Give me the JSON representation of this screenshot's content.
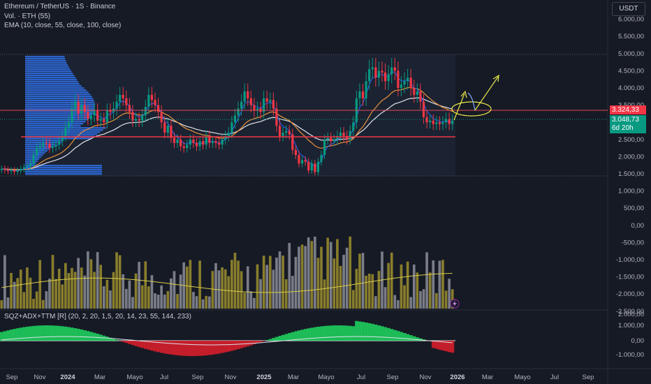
{
  "legend": {
    "symbol_line": "Ethereum / TetherUS · 1S · Binance",
    "volume_line": "Vol. · ETH (55)",
    "ema_line": "EMA (10, close, 55, close, 100, close)",
    "indicator_line": "SQZ+ADX+TTM [R] (20, 2, 20, 1,5, 20, 14, 23, 55, 144, 233)"
  },
  "currency": "USDT",
  "price_labels": {
    "resistance": "3.324,33",
    "current": "3.048,73",
    "countdown": "6d 20h"
  },
  "colors": {
    "bull": "#089981",
    "bear": "#f23645",
    "volume_bar": "#9c8f2e",
    "volume_bar_down": "#8c8f99",
    "ema10": "#2962ff",
    "ema55": "#e8913b",
    "ema100": "#e0e3eb",
    "annotation": "#e8e84a",
    "vp": "#2f6ee8"
  },
  "y_axis": {
    "price": [
      "6.000,00",
      "5.500,00",
      "5.000,00",
      "4.500,00",
      "4.000,00",
      "3.500,00",
      "3.000,00",
      "2.500,00",
      "2.000,00",
      "1.500,00",
      "1.000,00",
      "500,00",
      "0,00",
      "-500,00",
      "-1.000,00",
      "-1.500,00",
      "-2.000,00",
      "-2.500,00"
    ],
    "oscillator": [
      "2.000,00",
      "1.000,00",
      "0,00",
      "-1.000,00"
    ]
  },
  "x_axis": [
    {
      "label": "Sep",
      "bold": false
    },
    {
      "label": "Nov",
      "bold": false
    },
    {
      "label": "2024",
      "bold": true
    },
    {
      "label": "Mar",
      "bold": false
    },
    {
      "label": "Mayo",
      "bold": false
    },
    {
      "label": "Jul",
      "bold": false
    },
    {
      "label": "Sep",
      "bold": false
    },
    {
      "label": "Nov",
      "bold": false
    },
    {
      "label": "2025",
      "bold": true
    },
    {
      "label": "Mar",
      "bold": false
    },
    {
      "label": "Mayo",
      "bold": false
    },
    {
      "label": "Jul",
      "bold": false
    },
    {
      "label": "Sep",
      "bold": false
    },
    {
      "label": "Nov",
      "bold": false
    },
    {
      "label": "2026",
      "bold": true
    },
    {
      "label": "Mar",
      "bold": false
    },
    {
      "label": "Mayo",
      "bold": false
    },
    {
      "label": "Jul",
      "bold": false
    },
    {
      "label": "Sep",
      "bold": false
    }
  ],
  "chart_data": {
    "type": "candlestick",
    "title": "Ethereum / TetherUS · 1S · Binance",
    "interval": "1S",
    "resistance_level": 3324.33,
    "support_level": 2480,
    "last_price": 3048.73,
    "closes": [
      1640,
      1610,
      1580,
      1600,
      1560,
      1590,
      1640,
      1690,
      1720,
      1800,
      2050,
      2250,
      2300,
      2400,
      2380,
      2250,
      2300,
      2350,
      2450,
      2600,
      2850,
      3000,
      3400,
      3600,
      3250,
      3500,
      3300,
      3100,
      3200,
      3350,
      3050,
      3100,
      3000,
      3350,
      3300,
      3400,
      3600,
      3800,
      3700,
      3500,
      3300,
      3050,
      3100,
      3050,
      3200,
      3450,
      3800,
      3650,
      3500,
      3300,
      3000,
      2700,
      2900,
      2550,
      2400,
      2500,
      2300,
      2250,
      2350,
      2500,
      2400,
      2300,
      2450,
      2350,
      2600,
      2400,
      2450,
      2400,
      2350,
      2500,
      2600,
      2700,
      3000,
      3200,
      3400,
      3600,
      3900,
      3700,
      3500,
      3350,
      3400,
      3300,
      3700,
      3600,
      3650,
      3400,
      2900,
      2600,
      2700,
      2750,
      2650,
      2200,
      2050,
      1800,
      1900,
      1850,
      1600,
      1800,
      1550,
      1850,
      2050,
      2500,
      2550,
      2450,
      2500,
      2600,
      2700,
      2600,
      2500,
      2750,
      3000,
      3700,
      3900,
      3700,
      4200,
      4550,
      4600,
      4300,
      4500,
      4450,
      4200,
      4400,
      4600,
      4500,
      4000,
      4100,
      4200,
      4300,
      4000,
      3800,
      3900,
      3600,
      3150,
      3000,
      3050,
      2950,
      3000,
      2950,
      3000,
      3100,
      2950,
      3048.73
    ]
  }
}
